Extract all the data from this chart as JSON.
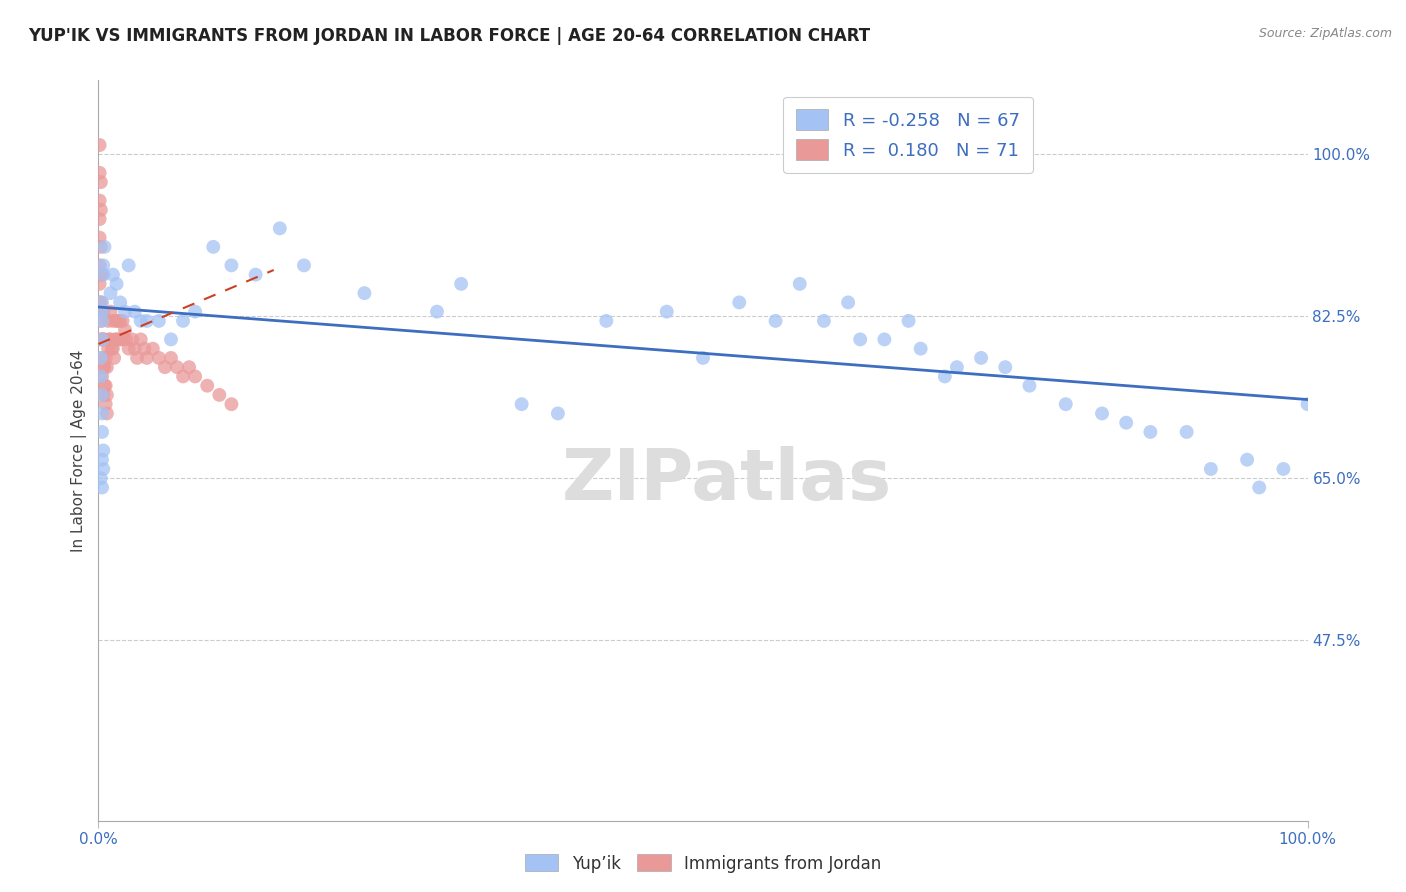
{
  "title": "YUP'IK VS IMMIGRANTS FROM JORDAN IN LABOR FORCE | AGE 20-64 CORRELATION CHART",
  "source": "Source: ZipAtlas.com",
  "ylabel": "In Labor Force | Age 20-64",
  "xlim": [
    0.0,
    1.0
  ],
  "ylim": [
    0.28,
    1.08
  ],
  "yticks": [
    0.475,
    0.65,
    0.825,
    1.0
  ],
  "ytick_labels": [
    "47.5%",
    "65.0%",
    "82.5%",
    "100.0%"
  ],
  "blue_R": -0.258,
  "blue_N": 67,
  "pink_R": 0.18,
  "pink_N": 71,
  "blue_color": "#a4c2f4",
  "pink_color": "#ea9999",
  "blue_line_color": "#3d6ebf",
  "pink_line_color": "#cc4125",
  "legend_blue_label": "Yup’ik",
  "legend_pink_label": "Immigrants from Jordan",
  "watermark": "ZIPatlas",
  "blue_trend_x": [
    0.0,
    1.0
  ],
  "blue_trend_y": [
    0.835,
    0.735
  ],
  "pink_trend_x": [
    0.0,
    0.145
  ],
  "pink_trend_y": [
    0.795,
    0.875
  ],
  "blue_x": [
    0.003,
    0.003,
    0.003,
    0.004,
    0.004,
    0.005,
    0.003,
    0.002,
    0.002,
    0.003,
    0.003,
    0.003,
    0.004,
    0.004,
    0.003,
    0.002,
    0.003,
    0.01,
    0.012,
    0.015,
    0.018,
    0.022,
    0.025,
    0.03,
    0.035,
    0.04,
    0.05,
    0.06,
    0.07,
    0.08,
    0.095,
    0.11,
    0.13,
    0.15,
    0.17,
    0.22,
    0.28,
    0.3,
    0.35,
    0.38,
    0.42,
    0.47,
    0.5,
    0.53,
    0.56,
    0.58,
    0.6,
    0.62,
    0.63,
    0.65,
    0.67,
    0.68,
    0.7,
    0.71,
    0.73,
    0.75,
    0.77,
    0.8,
    0.83,
    0.85,
    0.87,
    0.9,
    0.92,
    0.95,
    0.96,
    0.98,
    1.0
  ],
  "blue_y": [
    0.84,
    0.83,
    0.82,
    0.88,
    0.87,
    0.9,
    0.8,
    0.78,
    0.76,
    0.74,
    0.72,
    0.7,
    0.68,
    0.66,
    0.64,
    0.65,
    0.67,
    0.85,
    0.87,
    0.86,
    0.84,
    0.83,
    0.88,
    0.83,
    0.82,
    0.82,
    0.82,
    0.8,
    0.82,
    0.83,
    0.9,
    0.88,
    0.87,
    0.92,
    0.88,
    0.85,
    0.83,
    0.86,
    0.73,
    0.72,
    0.82,
    0.83,
    0.78,
    0.84,
    0.82,
    0.86,
    0.82,
    0.84,
    0.8,
    0.8,
    0.82,
    0.79,
    0.76,
    0.77,
    0.78,
    0.77,
    0.75,
    0.73,
    0.72,
    0.71,
    0.7,
    0.7,
    0.66,
    0.67,
    0.64,
    0.66,
    0.73
  ],
  "pink_x": [
    0.001,
    0.001,
    0.001,
    0.001,
    0.001,
    0.001,
    0.001,
    0.001,
    0.002,
    0.002,
    0.002,
    0.002,
    0.002,
    0.002,
    0.002,
    0.003,
    0.003,
    0.003,
    0.003,
    0.003,
    0.004,
    0.004,
    0.004,
    0.004,
    0.005,
    0.005,
    0.005,
    0.006,
    0.006,
    0.006,
    0.007,
    0.007,
    0.007,
    0.008,
    0.008,
    0.009,
    0.01,
    0.01,
    0.011,
    0.012,
    0.012,
    0.013,
    0.014,
    0.015,
    0.015,
    0.016,
    0.017,
    0.018,
    0.019,
    0.02,
    0.021,
    0.022,
    0.023,
    0.025,
    0.028,
    0.03,
    0.032,
    0.035,
    0.038,
    0.04,
    0.045,
    0.05,
    0.055,
    0.06,
    0.065,
    0.07,
    0.075,
    0.08,
    0.09,
    0.1,
    0.11
  ],
  "pink_y": [
    1.01,
    0.98,
    0.95,
    0.93,
    0.91,
    0.88,
    0.86,
    0.84,
    0.97,
    0.94,
    0.9,
    0.87,
    0.84,
    0.82,
    0.8,
    0.87,
    0.83,
    0.8,
    0.78,
    0.76,
    0.83,
    0.8,
    0.77,
    0.74,
    0.8,
    0.77,
    0.75,
    0.78,
    0.75,
    0.73,
    0.77,
    0.74,
    0.72,
    0.82,
    0.79,
    0.8,
    0.83,
    0.8,
    0.79,
    0.82,
    0.79,
    0.78,
    0.8,
    0.82,
    0.8,
    0.82,
    0.8,
    0.82,
    0.8,
    0.82,
    0.8,
    0.81,
    0.8,
    0.79,
    0.8,
    0.79,
    0.78,
    0.8,
    0.79,
    0.78,
    0.79,
    0.78,
    0.77,
    0.78,
    0.77,
    0.76,
    0.77,
    0.76,
    0.75,
    0.74,
    0.73
  ]
}
